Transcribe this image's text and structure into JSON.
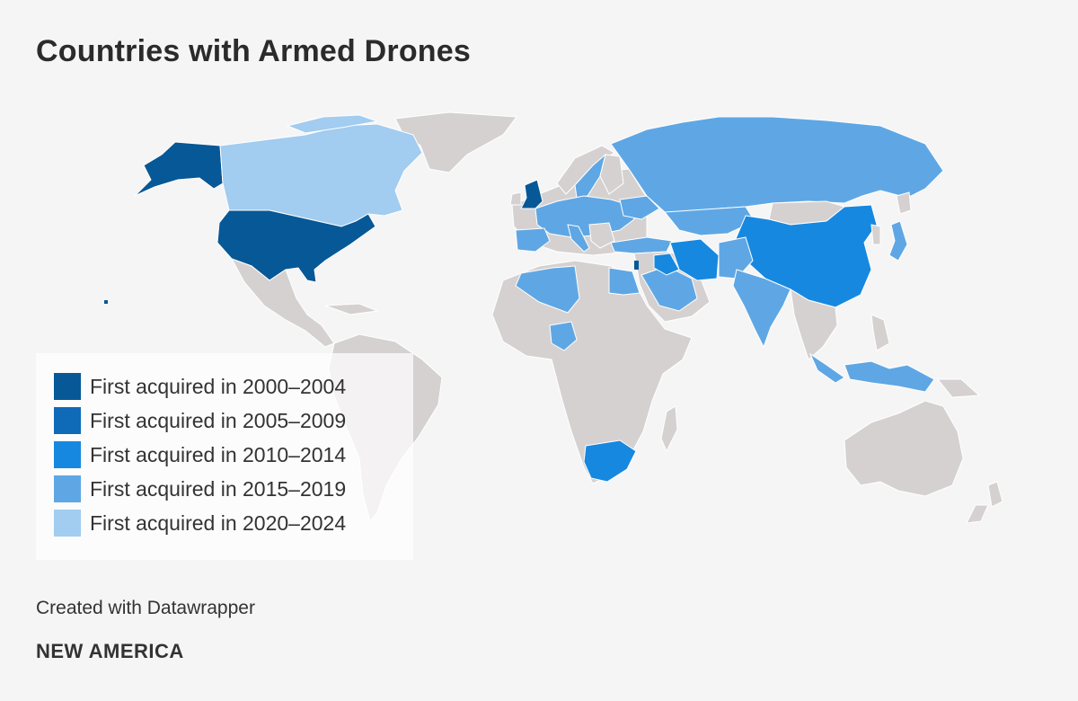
{
  "title": "Countries with Armed Drones",
  "credit": "Created with Datawrapper",
  "brand": "NEW AMERICA",
  "colors": {
    "background": "#f5f5f5",
    "land": "#d6d1d1",
    "period_2000_2004": "#075896",
    "period_2005_2009": "#0f6ab8",
    "period_2010_2014": "#1788e0",
    "period_2015_2019": "#5fa7e4",
    "period_2020_2024": "#a2ccf0"
  },
  "legend": {
    "items": [
      {
        "label": "First acquired in 2000–2004",
        "color": "#075896"
      },
      {
        "label": "First acquired in 2005–2009",
        "color": "#0f6ab8"
      },
      {
        "label": "First acquired in 2010–2014",
        "color": "#1788e0"
      },
      {
        "label": "First acquired in 2015–2019",
        "color": "#5fa7e4"
      },
      {
        "label": "First acquired in 2020–2024",
        "color": "#a2ccf0"
      }
    ]
  },
  "map": {
    "type": "choropleth",
    "highlighted_countries": [
      {
        "name": "United States",
        "period": "2000–2004"
      },
      {
        "name": "United Kingdom",
        "period": "2000–2004"
      },
      {
        "name": "Israel",
        "period": "2000–2004"
      },
      {
        "name": "China",
        "period": "2010–2014"
      },
      {
        "name": "Iran",
        "period": "2010–2014"
      },
      {
        "name": "Iraq",
        "period": "2010–2014"
      },
      {
        "name": "South Africa",
        "period": "2010–2014"
      },
      {
        "name": "Russia",
        "period": "2015–2019"
      },
      {
        "name": "Ukraine",
        "period": "2015–2019"
      },
      {
        "name": "Turkey",
        "period": "2015–2019"
      },
      {
        "name": "Egypt",
        "period": "2015–2019"
      },
      {
        "name": "Algeria",
        "period": "2015–2019"
      },
      {
        "name": "Nigeria",
        "period": "2015–2019"
      },
      {
        "name": "Saudi Arabia",
        "period": "2015–2019"
      },
      {
        "name": "India",
        "period": "2015–2019"
      },
      {
        "name": "Pakistan",
        "period": "2015–2019"
      },
      {
        "name": "Kazakhstan",
        "period": "2015–2019"
      },
      {
        "name": "Indonesia",
        "period": "2015–2019"
      },
      {
        "name": "Spain",
        "period": "2015–2019"
      },
      {
        "name": "France",
        "period": "2015–2019"
      },
      {
        "name": "Italy",
        "period": "2015–2019"
      },
      {
        "name": "Germany",
        "period": "2015–2019"
      },
      {
        "name": "Poland",
        "period": "2015–2019"
      },
      {
        "name": "Sweden",
        "period": "2015–2019"
      },
      {
        "name": "Japan",
        "period": "2015–2019"
      },
      {
        "name": "Canada",
        "period": "2020–2024"
      }
    ]
  }
}
